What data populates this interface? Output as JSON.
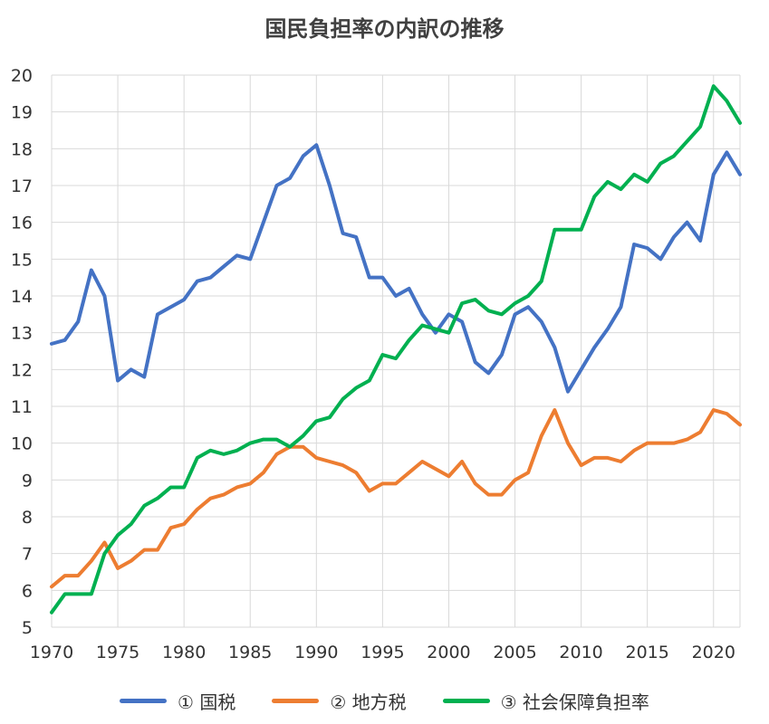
{
  "chart_data": {
    "type": "line",
    "title": "国民負担率の内訳の推移",
    "xlabel": "",
    "ylabel": "",
    "xlim": [
      1970,
      2022
    ],
    "ylim": [
      5,
      20
    ],
    "x_ticks": [
      "1970",
      "1975",
      "1980",
      "1985",
      "1990",
      "1995",
      "2000",
      "2005",
      "2010",
      "2015",
      "2020"
    ],
    "y_ticks": [
      "5",
      "6",
      "7",
      "8",
      "9",
      "10",
      "11",
      "12",
      "13",
      "14",
      "15",
      "16",
      "17",
      "18",
      "19",
      "20"
    ],
    "grid": true,
    "legend_position": "bottom",
    "x": [
      1970,
      1971,
      1972,
      1973,
      1974,
      1975,
      1976,
      1977,
      1978,
      1979,
      1980,
      1981,
      1982,
      1983,
      1984,
      1985,
      1986,
      1987,
      1988,
      1989,
      1990,
      1991,
      1992,
      1993,
      1994,
      1995,
      1996,
      1997,
      1998,
      1999,
      2000,
      2001,
      2002,
      2003,
      2004,
      2005,
      2006,
      2007,
      2008,
      2009,
      2010,
      2011,
      2012,
      2013,
      2014,
      2015,
      2016,
      2017,
      2018,
      2019,
      2020,
      2021,
      2022
    ],
    "series": [
      {
        "name": "① 国税",
        "color": "#4472C4",
        "values": [
          12.7,
          12.8,
          13.3,
          14.7,
          14.0,
          11.7,
          12.0,
          11.8,
          13.5,
          13.7,
          13.9,
          14.4,
          14.5,
          14.8,
          15.1,
          15.0,
          16.0,
          17.0,
          17.2,
          17.8,
          18.1,
          17.0,
          15.7,
          15.6,
          14.5,
          14.5,
          14.0,
          14.2,
          13.5,
          13.0,
          13.5,
          13.3,
          12.2,
          11.9,
          12.4,
          13.5,
          13.7,
          13.3,
          12.6,
          11.4,
          12.0,
          12.6,
          13.1,
          13.7,
          15.4,
          15.3,
          15.0,
          15.6,
          16.0,
          15.5,
          17.3,
          17.9,
          17.3
        ]
      },
      {
        "name": "② 地方税",
        "color": "#ED7D31",
        "values": [
          6.1,
          6.4,
          6.4,
          6.8,
          7.3,
          6.6,
          6.8,
          7.1,
          7.1,
          7.7,
          7.8,
          8.2,
          8.5,
          8.6,
          8.8,
          8.9,
          9.2,
          9.7,
          9.9,
          9.9,
          9.6,
          9.5,
          9.4,
          9.2,
          8.7,
          8.9,
          8.9,
          9.2,
          9.5,
          9.3,
          9.1,
          9.5,
          8.9,
          8.6,
          8.6,
          9.0,
          9.2,
          10.2,
          10.9,
          10.0,
          9.4,
          9.6,
          9.6,
          9.5,
          9.8,
          10.0,
          10.0,
          10.0,
          10.1,
          10.3,
          10.9,
          10.8,
          10.5
        ]
      },
      {
        "name": "③ 社会保障負担率",
        "color": "#00B050",
        "values": [
          5.4,
          5.9,
          5.9,
          5.9,
          7.0,
          7.5,
          7.8,
          8.3,
          8.5,
          8.8,
          8.8,
          9.6,
          9.8,
          9.7,
          9.8,
          10.0,
          10.1,
          10.1,
          9.9,
          10.2,
          10.6,
          10.7,
          11.2,
          11.5,
          11.7,
          12.4,
          12.3,
          12.8,
          13.2,
          13.1,
          13.0,
          13.8,
          13.9,
          13.6,
          13.5,
          13.8,
          14.0,
          14.4,
          15.8,
          15.8,
          15.8,
          16.7,
          17.1,
          16.9,
          17.3,
          17.1,
          17.6,
          17.8,
          18.2,
          18.6,
          19.7,
          19.3,
          18.7
        ]
      }
    ]
  }
}
